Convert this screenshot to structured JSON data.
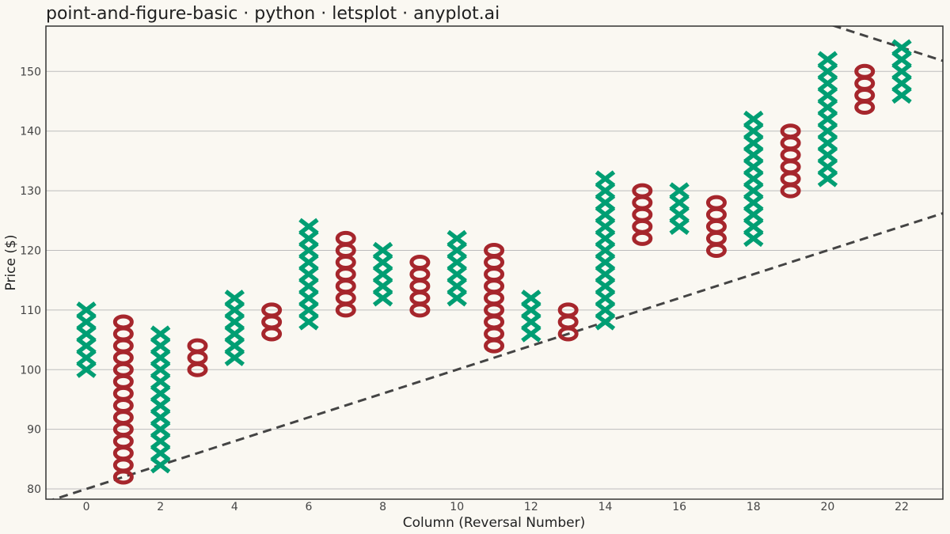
{
  "title": "point-and-figure-basic · python · letsplot · anyplot.ai",
  "colors": {
    "background": "#FAF8F2",
    "x_mark": "#009E73",
    "o_mark": "#A6262C",
    "trend_line": "#444444",
    "grid": "#BDBDBD",
    "panel_border": "#333333"
  },
  "chart_data": {
    "type": "scatter",
    "subtype": "point-and-figure",
    "box_size": 2,
    "xlabel": "Column (Reversal Number)",
    "ylabel": "Price ($)",
    "xticks": [
      0,
      2,
      4,
      6,
      8,
      10,
      12,
      14,
      16,
      18,
      20,
      22
    ],
    "yticks": [
      80,
      90,
      100,
      110,
      120,
      130,
      140,
      150
    ],
    "xlim": [
      -1.09,
      23.11
    ],
    "ylim": [
      78.28,
      157.6
    ],
    "grid": "horizontal",
    "legend": "none",
    "columns": [
      {
        "x": 0,
        "mark": "X",
        "low": 100,
        "high": 110
      },
      {
        "x": 1,
        "mark": "O",
        "low": 82,
        "high": 108
      },
      {
        "x": 2,
        "mark": "X",
        "low": 84,
        "high": 106
      },
      {
        "x": 3,
        "mark": "O",
        "low": 100,
        "high": 104
      },
      {
        "x": 4,
        "mark": "X",
        "low": 102,
        "high": 112
      },
      {
        "x": 5,
        "mark": "O",
        "low": 106,
        "high": 110
      },
      {
        "x": 6,
        "mark": "X",
        "low": 108,
        "high": 124
      },
      {
        "x": 7,
        "mark": "O",
        "low": 110,
        "high": 122
      },
      {
        "x": 8,
        "mark": "X",
        "low": 112,
        "high": 120
      },
      {
        "x": 9,
        "mark": "O",
        "low": 110,
        "high": 118
      },
      {
        "x": 10,
        "mark": "X",
        "low": 112,
        "high": 122
      },
      {
        "x": 11,
        "mark": "O",
        "low": 104,
        "high": 120
      },
      {
        "x": 12,
        "mark": "X",
        "low": 106,
        "high": 112
      },
      {
        "x": 13,
        "mark": "O",
        "low": 106,
        "high": 110
      },
      {
        "x": 14,
        "mark": "X",
        "low": 108,
        "high": 132
      },
      {
        "x": 15,
        "mark": "O",
        "low": 122,
        "high": 130
      },
      {
        "x": 16,
        "mark": "X",
        "low": 124,
        "high": 130
      },
      {
        "x": 17,
        "mark": "O",
        "low": 120,
        "high": 128
      },
      {
        "x": 18,
        "mark": "X",
        "low": 122,
        "high": 142
      },
      {
        "x": 19,
        "mark": "O",
        "low": 130,
        "high": 140
      },
      {
        "x": 20,
        "mark": "X",
        "low": 132,
        "high": 152
      },
      {
        "x": 21,
        "mark": "O",
        "low": 144,
        "high": 150
      },
      {
        "x": 22,
        "mark": "X",
        "low": 146,
        "high": 154
      }
    ],
    "trend_lines": [
      {
        "style": "dashed",
        "intercept": 80,
        "slope": 2
      },
      {
        "style": "dashed",
        "intercept": 198,
        "slope": -2
      }
    ]
  }
}
